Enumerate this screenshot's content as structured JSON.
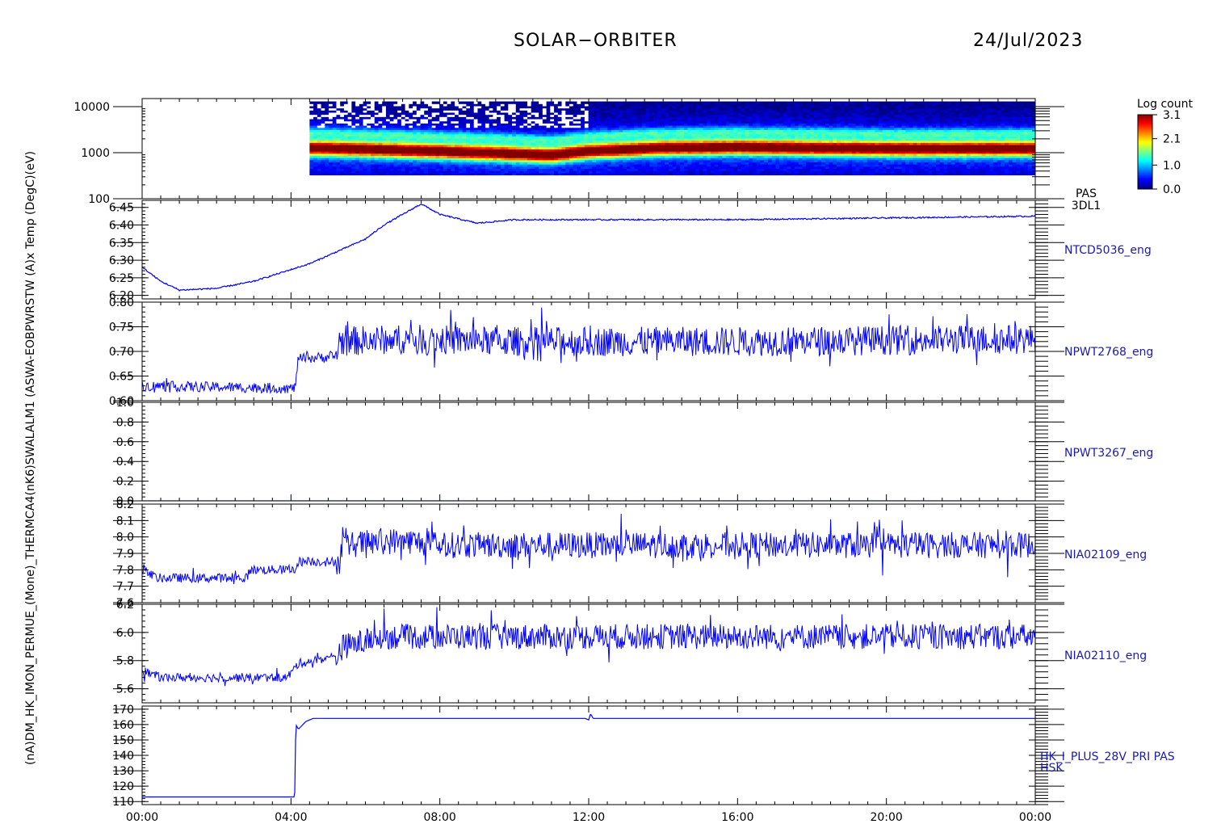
{
  "header": {
    "mission": "SOLAR−ORBITER",
    "date": "24/Jul/2023"
  },
  "colorbar": {
    "label": "Log count",
    "ticks": [
      "3.1",
      "2.1",
      "1.0",
      "0.0"
    ]
  },
  "y_axis_stacked_label": "(nA)DM_HK_IMON_PERMUE_(Mone)_THERMCA4(nK6)SWALALM1 (ASWA-EOBPWRSTW (A)x Temp (DegC)(eV)",
  "x_axis": {
    "ticks": [
      "00:00",
      "04:00",
      "08:00",
      "12:00",
      "16:00",
      "20:00",
      "00:00"
    ]
  },
  "chart_data": [
    {
      "type": "heatmap",
      "instrument": [
        "PAS",
        "3DL1"
      ],
      "y_scale": "log",
      "yticks": [
        "10000",
        "1000",
        "100"
      ],
      "ylim": [
        100,
        15000
      ],
      "zlim": [
        0.0,
        3.1
      ],
      "data_coverage": [
        4.5,
        24.0
      ],
      "peak_energy_trend": [
        [
          4.5,
          1300
        ],
        [
          8,
          1100
        ],
        [
          11,
          900
        ],
        [
          12,
          1100
        ],
        [
          14,
          1300
        ],
        [
          16,
          1350
        ],
        [
          20,
          1250
        ],
        [
          24,
          1250
        ]
      ]
    },
    {
      "type": "line",
      "series_name": "NTCD5036_eng",
      "ylim": [
        6.19,
        6.47
      ],
      "yticks": [
        "6.45",
        "6.40",
        "6.35",
        "6.30",
        "6.25",
        "6.20"
      ],
      "points": [
        [
          0,
          6.28
        ],
        [
          0.5,
          6.24
        ],
        [
          1,
          6.215
        ],
        [
          2,
          6.22
        ],
        [
          3,
          6.24
        ],
        [
          4.5,
          6.29
        ],
        [
          6,
          6.36
        ],
        [
          6.5,
          6.4
        ],
        [
          7.5,
          6.46
        ],
        [
          8,
          6.43
        ],
        [
          9,
          6.405
        ],
        [
          10,
          6.415
        ],
        [
          12,
          6.415
        ],
        [
          16,
          6.415
        ],
        [
          20,
          6.42
        ],
        [
          24,
          6.425
        ]
      ]
    },
    {
      "type": "line",
      "series_name": "NPWT2768_eng",
      "ylim": [
        0.6,
        0.8
      ],
      "yticks": [
        "0.80",
        "0.75",
        "0.70",
        "0.65",
        "0.60"
      ],
      "points": [
        [
          0,
          0.63
        ],
        [
          4.1,
          0.625
        ],
        [
          4.2,
          0.685
        ],
        [
          5.2,
          0.69
        ],
        [
          5.3,
          0.72
        ],
        [
          7,
          0.725
        ],
        [
          10,
          0.72
        ],
        [
          16,
          0.72
        ],
        [
          24,
          0.725
        ]
      ]
    },
    {
      "type": "line",
      "series_name": "NPWT3267_eng",
      "ylim": [
        0.0,
        1.0
      ],
      "yticks": [
        "1.0",
        "0.8",
        "0.6",
        "0.4",
        "0.2",
        "0.0"
      ],
      "points": [
        [
          0,
          0.0
        ],
        [
          24,
          0.0
        ]
      ]
    },
    {
      "type": "line",
      "series_name": "NIA02109_eng",
      "ylim": [
        7.6,
        8.2
      ],
      "yticks": [
        "8.2",
        "8.1",
        "8.0",
        "7.9",
        "7.8",
        "7.7",
        "7.6"
      ],
      "points": [
        [
          0,
          7.8
        ],
        [
          0.4,
          7.75
        ],
        [
          2.8,
          7.75
        ],
        [
          2.9,
          7.8
        ],
        [
          4.1,
          7.8
        ],
        [
          4.2,
          7.85
        ],
        [
          5.3,
          7.85
        ],
        [
          5.4,
          7.95
        ],
        [
          7,
          7.98
        ],
        [
          8,
          7.95
        ],
        [
          12,
          7.95
        ],
        [
          16,
          7.95
        ],
        [
          24,
          7.95
        ]
      ]
    },
    {
      "type": "line",
      "series_name": "NIA02110_eng",
      "ylim": [
        5.5,
        6.2
      ],
      "yticks": [
        "6.2",
        "6.0",
        "5.8",
        "5.6"
      ],
      "points": [
        [
          0,
          5.73
        ],
        [
          0.5,
          5.68
        ],
        [
          3.9,
          5.68
        ],
        [
          4.2,
          5.78
        ],
        [
          5.2,
          5.83
        ],
        [
          5.4,
          5.9
        ],
        [
          6.5,
          5.97
        ],
        [
          8,
          5.97
        ],
        [
          12,
          5.97
        ],
        [
          16,
          5.97
        ],
        [
          24,
          5.97
        ]
      ]
    },
    {
      "type": "line",
      "series_name": "HK_I_PLUS_28V_PRI PAS HSK",
      "ylim": [
        108,
        172
      ],
      "yticks": [
        "170",
        "160",
        "150",
        "140",
        "130",
        "120",
        "110"
      ],
      "points": [
        [
          0,
          113
        ],
        [
          4.1,
          113
        ],
        [
          4.13,
          160
        ],
        [
          4.2,
          157
        ],
        [
          4.4,
          162
        ],
        [
          4.6,
          164
        ],
        [
          11.9,
          164
        ],
        [
          12.0,
          163
        ],
        [
          12.05,
          167
        ],
        [
          12.12,
          164
        ],
        [
          24,
          164
        ]
      ]
    }
  ],
  "series_labels": [
    "NTCD5036_eng",
    "NPWT2768_eng",
    "NPWT3267_eng",
    "NIA02109_eng",
    "NIA02110_eng",
    "HK_I_PLUS_28V_PRI PAS",
    "HSK"
  ],
  "colors": {
    "trace": "#0000ff",
    "axis": "#000000",
    "label": "#1a1aaa",
    "background": "#ffffff"
  }
}
